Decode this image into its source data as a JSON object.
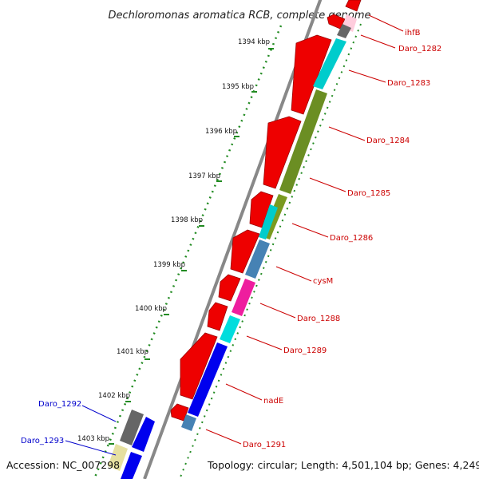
{
  "title": "Dechloromonas aromatica RCB, complete genome",
  "footer": {
    "accession": "Accession: NC_007298",
    "topology": "Topology: circular; Length: 4,501,104 bp; Genes: 4,249"
  },
  "ticks": [
    "1394 kbp",
    "1395 kbp",
    "1396 kbp",
    "1397 kbp",
    "1398 kbp",
    "1399 kbp",
    "1400 kbp",
    "1401 kbp",
    "1402 kbp",
    "1403 kbp"
  ],
  "gene_labels_right": [
    "ihfB",
    "Daro_1282",
    "Daro_1283",
    "Daro_1284",
    "Daro_1285",
    "Daro_1286",
    "cysM",
    "Daro_1288",
    "Daro_1289",
    "nadE",
    "Daro_1291"
  ],
  "gene_labels_left": [
    "Daro_1292",
    "Daro_1293"
  ],
  "colors": {
    "backbone": "#888888",
    "tick_dots": "#228b22",
    "forward_red": "#ee0000",
    "label_red": "#cc0000",
    "label_blue": "#0000cc"
  }
}
